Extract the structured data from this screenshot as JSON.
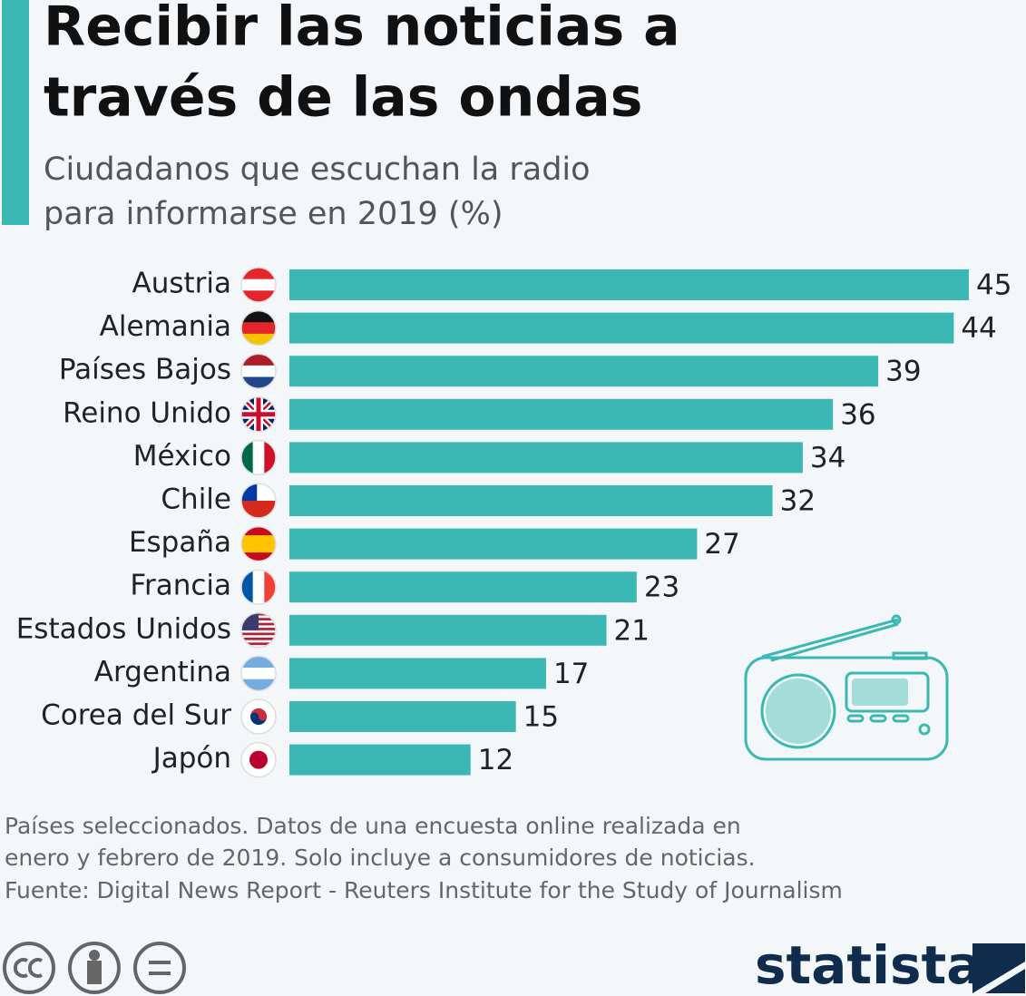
{
  "chart_data": {
    "type": "bar",
    "orientation": "horizontal",
    "title": [
      "Recibir las noticias a",
      "través de las ondas"
    ],
    "subtitle": [
      "Ciudadanos que escuchan la radio",
      "para informarse en 2019 (%)"
    ],
    "categories": [
      "Austria",
      "Alemania",
      "Países Bajos",
      "Reino Unido",
      "México",
      "Chile",
      "España",
      "Francia",
      "Estados Unidos",
      "Argentina",
      "Corea del Sur",
      "Japón"
    ],
    "values": [
      45,
      44,
      39,
      36,
      34,
      32,
      27,
      23,
      21,
      17,
      15,
      12
    ],
    "color": "#3bb8b4",
    "notes": [
      "Países seleccionados. Datos de una encuesta online realizada en",
      "enero y febrero de 2019. Solo incluye a consumidores de noticias.",
      "Fuente: Digital News Report - Reuters Institute for the Study of Journalism"
    ],
    "logo": "statista"
  }
}
